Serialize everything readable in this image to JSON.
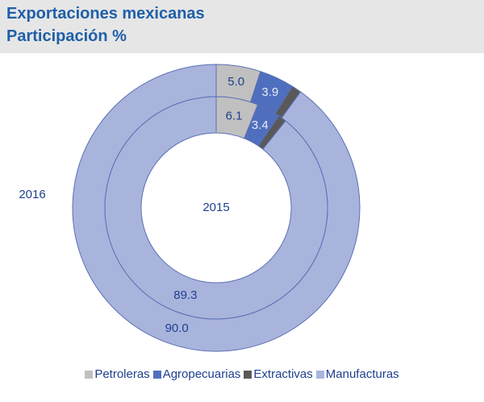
{
  "chart_data": {
    "type": "donut",
    "title": "Exportaciones mexicanas",
    "subtitle": "Participación %",
    "categories": [
      "Petroleras",
      "Agropecuarias",
      "Extractivas",
      "Manufacturas"
    ],
    "colors": [
      "#c0c0c0",
      "#4f6fbe",
      "#595959",
      "#a9b4dc"
    ],
    "series": [
      {
        "name": "2016",
        "values": [
          5.0,
          3.9,
          1.1,
          90.0
        ],
        "value_labels": [
          "5.0",
          "3.9",
          null,
          "90.0"
        ]
      },
      {
        "name": "2015",
        "values": [
          6.1,
          3.4,
          1.2,
          89.3
        ],
        "value_labels": [
          "6.1",
          "3.4",
          null,
          "89.3"
        ]
      }
    ],
    "legend": "bottom"
  }
}
